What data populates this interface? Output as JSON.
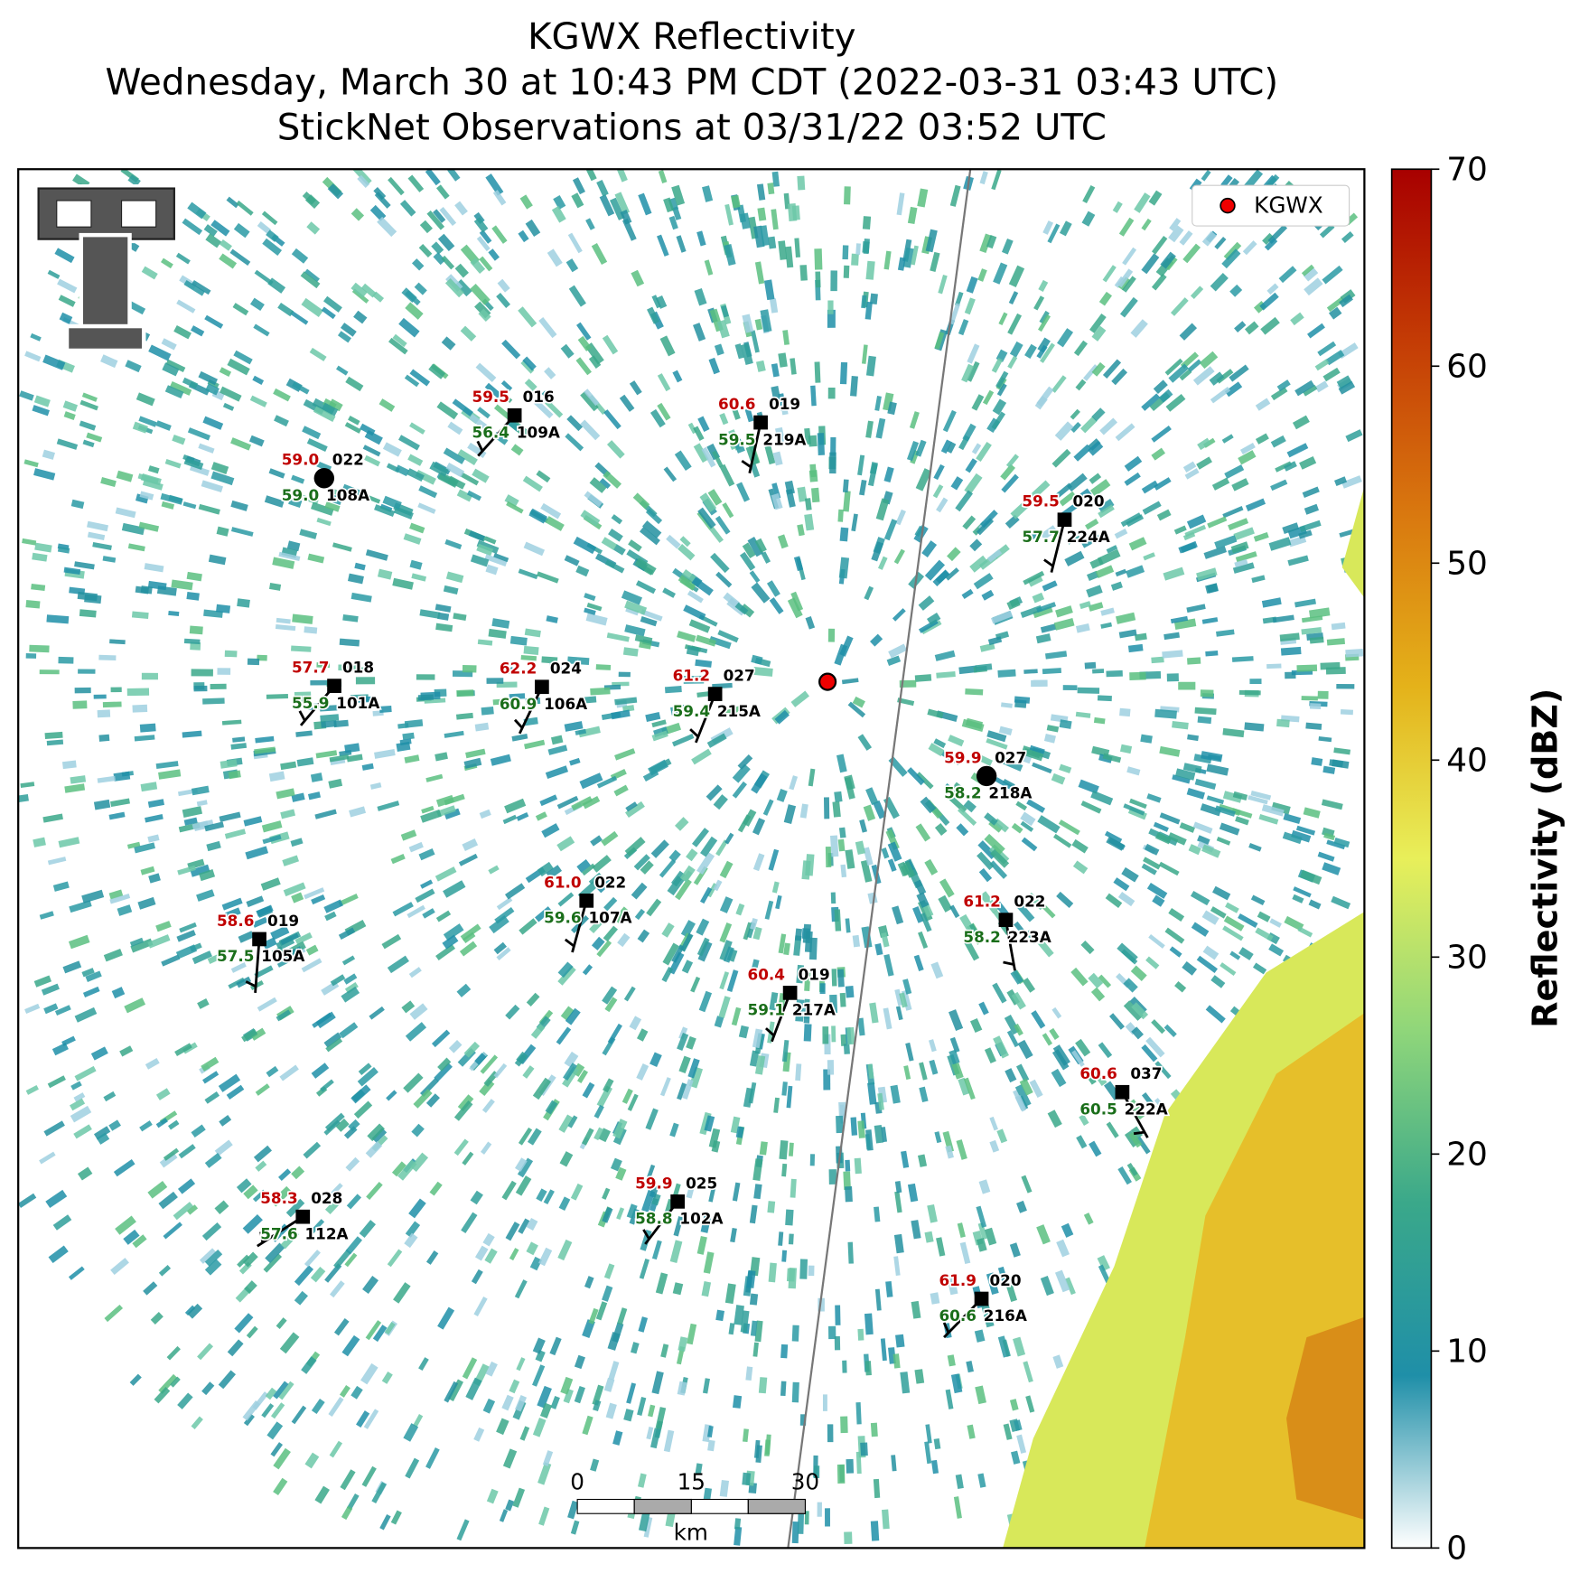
{
  "header": {
    "title_lines": [
      "KGWX Reflectivity",
      "Wednesday, March 30 at 10:43 PM CDT (2022-03-31 03:43 UTC)",
      "StickNet Observations at 03/31/22 03:52 UTC"
    ]
  },
  "map": {
    "legend": "KGWX",
    "scale_bar": {
      "ticks": [
        "0",
        "15",
        "30"
      ],
      "unit": "km"
    },
    "stations": [
      {
        "id": "109A",
        "temperature": "59.5",
        "dewpoint": "56.4",
        "pressure": "016"
      },
      {
        "id": "219A",
        "temperature": "60.6",
        "dewpoint": "59.5",
        "pressure": "019"
      },
      {
        "id": "108A",
        "temperature": "59.0",
        "dewpoint": "59.0",
        "pressure": "022"
      },
      {
        "id": "224A",
        "temperature": "59.5",
        "dewpoint": "57.7",
        "pressure": "020"
      },
      {
        "id": "101A",
        "temperature": "57.7",
        "dewpoint": "55.9",
        "pressure": "018"
      },
      {
        "id": "106A",
        "temperature": "62.2",
        "dewpoint": "60.9",
        "pressure": "024"
      },
      {
        "id": "215A",
        "temperature": "61.2",
        "dewpoint": "59.4",
        "pressure": "027"
      },
      {
        "id": "218A",
        "temperature": "59.9",
        "dewpoint": "58.2",
        "pressure": "027"
      },
      {
        "id": "107A",
        "temperature": "61.0",
        "dewpoint": "59.6",
        "pressure": "022"
      },
      {
        "id": "223A",
        "temperature": "61.2",
        "dewpoint": "58.2",
        "pressure": "022"
      },
      {
        "id": "105A",
        "temperature": "58.6",
        "dewpoint": "57.5",
        "pressure": "019"
      },
      {
        "id": "217A",
        "temperature": "60.4",
        "dewpoint": "59.1",
        "pressure": "019"
      },
      {
        "id": "222A",
        "temperature": "60.6",
        "dewpoint": "60.5",
        "pressure": "037"
      },
      {
        "id": "102A",
        "temperature": "59.9",
        "dewpoint": "58.8",
        "pressure": "025"
      },
      {
        "id": "112A",
        "temperature": "58.3",
        "dewpoint": "57.6",
        "pressure": "028"
      },
      {
        "id": "216A",
        "temperature": "61.9",
        "dewpoint": "60.6",
        "pressure": "020"
      }
    ]
  },
  "colorbar": {
    "label": "Reflectivity (dBZ)",
    "lim": [
      0,
      70
    ],
    "ticks": [
      0,
      10,
      20,
      30,
      40,
      50,
      60,
      70
    ],
    "colors": [
      "#ffffff",
      "#1f8fa8",
      "#3aa88a",
      "#8fd67a",
      "#e8ef5a",
      "#e4b21a",
      "#d9780f",
      "#c43c05",
      "#a80000"
    ]
  }
}
